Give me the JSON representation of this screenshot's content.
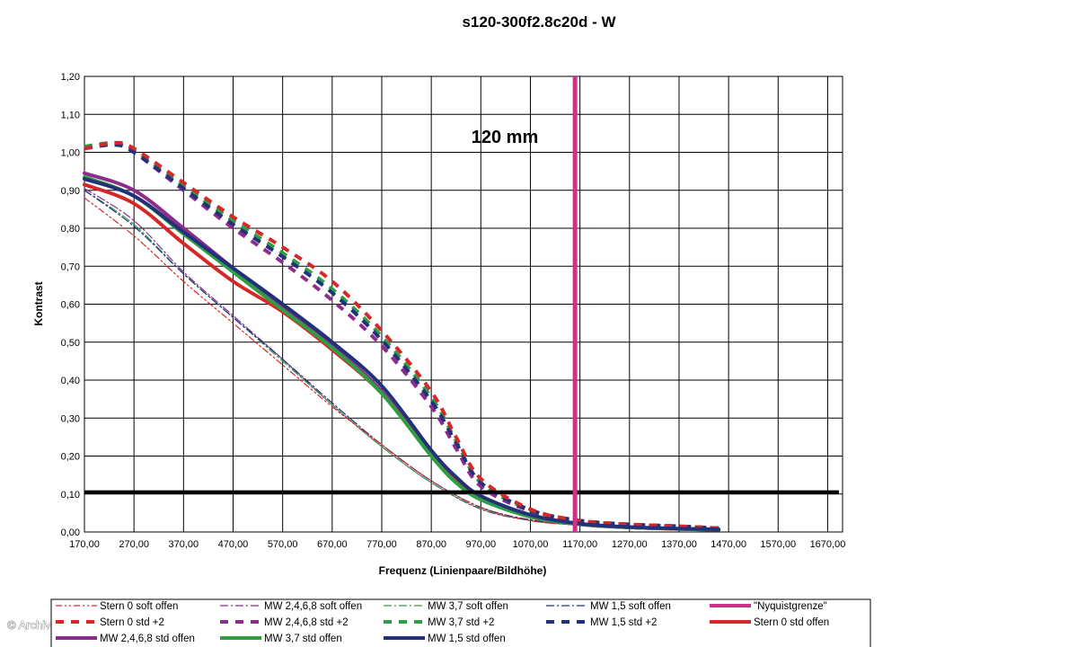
{
  "chart_data": {
    "type": "line",
    "title": "s120-300f2.8c20d - W",
    "annotation": "120 mm",
    "xlabel": "Frequenz (Linienpaare/Bildhöhe)",
    "ylabel": "Kontrast",
    "xlim": [
      170,
      1700
    ],
    "ylim": [
      0,
      1.2
    ],
    "x_ticks": [
      "170,00",
      "270,00",
      "370,00",
      "470,00",
      "570,00",
      "670,00",
      "770,00",
      "870,00",
      "970,00",
      "1070,00",
      "1170,00",
      "1270,00",
      "1370,00",
      "1470,00",
      "1570,00",
      "1670,00"
    ],
    "y_ticks": [
      "0,00",
      "0,10",
      "0,20",
      "0,30",
      "0,40",
      "0,50",
      "0,60",
      "0,70",
      "0,80",
      "0,90",
      "1,00",
      "1,10",
      "1,20"
    ],
    "grid": true,
    "legend_position": "bottom",
    "reference_lines": [
      {
        "orientation": "horizontal",
        "value": 0.105,
        "color": "#000000"
      },
      {
        "orientation": "vertical",
        "value": 1160,
        "color": "#d0308a",
        "name": "\"Nyquistgrenze\""
      }
    ],
    "series": [
      {
        "name": "Stern 0 soft offen",
        "color": "#d62828",
        "style": "dashdotdot",
        "width": 1.2,
        "x": [
          170,
          270,
          370,
          470,
          570,
          670,
          770,
          870,
          970,
          1070,
          1170,
          1270,
          1370,
          1450
        ],
        "y": [
          0.88,
          0.78,
          0.66,
          0.55,
          0.44,
          0.33,
          0.23,
          0.135,
          0.065,
          0.03,
          0.018,
          0.012,
          0.008,
          0.006
        ]
      },
      {
        "name": "MW 2,4,6,8 soft offen",
        "color": "#8e2c8e",
        "style": "dashdot",
        "width": 1.2,
        "x": [
          170,
          270,
          370,
          470,
          570,
          670,
          770,
          870,
          970,
          1070,
          1170,
          1270,
          1370,
          1450
        ],
        "y": [
          0.905,
          0.82,
          0.685,
          0.57,
          0.455,
          0.335,
          0.225,
          0.13,
          0.06,
          0.03,
          0.018,
          0.012,
          0.008,
          0.006
        ]
      },
      {
        "name": "MW 3,7 soft offen",
        "color": "#2e9e45",
        "style": "dashdot",
        "width": 1.2,
        "x": [
          170,
          270,
          370,
          470,
          570,
          670,
          770,
          870,
          970,
          1070,
          1170,
          1270,
          1370,
          1450
        ],
        "y": [
          0.9,
          0.81,
          0.68,
          0.565,
          0.45,
          0.335,
          0.225,
          0.13,
          0.062,
          0.03,
          0.018,
          0.012,
          0.008,
          0.006
        ]
      },
      {
        "name": "MW 1,5 soft offen",
        "color": "#23307a",
        "style": "dashdot",
        "width": 1.2,
        "x": [
          170,
          270,
          370,
          470,
          570,
          670,
          770,
          870,
          970,
          1070,
          1170,
          1270,
          1370,
          1450
        ],
        "y": [
          0.9,
          0.805,
          0.68,
          0.565,
          0.455,
          0.34,
          0.23,
          0.135,
          0.065,
          0.032,
          0.018,
          0.012,
          0.008,
          0.006
        ]
      },
      {
        "name": "\"Nyquistgrenze\"",
        "color": "#d0308a",
        "style": "solid",
        "width": 5,
        "x": [
          1160,
          1160
        ],
        "y": [
          0,
          1.2
        ]
      },
      {
        "name": "Stern 0 std +2",
        "color": "#d62828",
        "style": "dash",
        "width": 4,
        "x": [
          170,
          230,
          270,
          370,
          470,
          570,
          670,
          770,
          870,
          920,
          970,
          1070,
          1170,
          1270,
          1370,
          1450
        ],
        "y": [
          1.01,
          1.025,
          1.01,
          0.92,
          0.83,
          0.75,
          0.66,
          0.53,
          0.37,
          0.25,
          0.14,
          0.06,
          0.03,
          0.02,
          0.015,
          0.01
        ]
      },
      {
        "name": "MW 2,4,6,8 std +2",
        "color": "#8e2c8e",
        "style": "dash",
        "width": 4,
        "x": [
          170,
          230,
          270,
          370,
          470,
          570,
          670,
          770,
          870,
          920,
          970,
          1070,
          1170,
          1270,
          1370,
          1450
        ],
        "y": [
          1.01,
          1.02,
          1.0,
          0.9,
          0.8,
          0.71,
          0.61,
          0.49,
          0.33,
          0.22,
          0.12,
          0.055,
          0.03,
          0.02,
          0.015,
          0.01
        ]
      },
      {
        "name": "MW 3,7 std +2",
        "color": "#2e9e45",
        "style": "dash",
        "width": 4,
        "x": [
          170,
          230,
          270,
          370,
          470,
          570,
          670,
          770,
          870,
          920,
          970,
          1070,
          1170,
          1270,
          1370,
          1450
        ],
        "y": [
          1.015,
          1.025,
          1.005,
          0.91,
          0.82,
          0.735,
          0.64,
          0.515,
          0.355,
          0.24,
          0.13,
          0.058,
          0.03,
          0.02,
          0.015,
          0.01
        ]
      },
      {
        "name": "MW 1,5 std +2",
        "color": "#23307a",
        "style": "dash",
        "width": 4,
        "x": [
          170,
          230,
          270,
          370,
          470,
          570,
          670,
          770,
          870,
          920,
          970,
          1070,
          1170,
          1270,
          1370,
          1450
        ],
        "y": [
          1.01,
          1.02,
          1.0,
          0.905,
          0.81,
          0.725,
          0.63,
          0.505,
          0.345,
          0.235,
          0.13,
          0.058,
          0.03,
          0.02,
          0.015,
          0.01
        ]
      },
      {
        "name": "Stern 0 std offen",
        "color": "#d62828",
        "style": "solid",
        "width": 4,
        "x": [
          170,
          270,
          370,
          470,
          570,
          670,
          770,
          870,
          920,
          970,
          1070,
          1170,
          1270,
          1370,
          1450
        ],
        "y": [
          0.915,
          0.865,
          0.76,
          0.66,
          0.58,
          0.48,
          0.365,
          0.205,
          0.14,
          0.09,
          0.04,
          0.02,
          0.012,
          0.008,
          0.006
        ]
      },
      {
        "name": "MW 2,4,6,8 std offen",
        "color": "#8e2c8e",
        "style": "solid",
        "width": 4,
        "x": [
          170,
          270,
          370,
          470,
          570,
          670,
          770,
          870,
          920,
          970,
          1070,
          1170,
          1270,
          1370,
          1450
        ],
        "y": [
          0.945,
          0.9,
          0.8,
          0.695,
          0.59,
          0.49,
          0.37,
          0.2,
          0.135,
          0.09,
          0.04,
          0.02,
          0.012,
          0.008,
          0.006
        ]
      },
      {
        "name": "MW 3,7 std offen",
        "color": "#2e9e45",
        "style": "solid",
        "width": 4,
        "x": [
          170,
          270,
          370,
          470,
          570,
          670,
          770,
          870,
          920,
          970,
          1070,
          1170,
          1270,
          1370,
          1450
        ],
        "y": [
          0.935,
          0.885,
          0.785,
          0.685,
          0.585,
          0.485,
          0.365,
          0.2,
          0.13,
          0.085,
          0.04,
          0.02,
          0.012,
          0.008,
          0.006
        ]
      },
      {
        "name": "MW 1,5 std offen",
        "color": "#23307a",
        "style": "solid",
        "width": 4,
        "x": [
          170,
          270,
          370,
          470,
          570,
          670,
          770,
          870,
          920,
          970,
          1070,
          1170,
          1270,
          1370,
          1450
        ],
        "y": [
          0.93,
          0.885,
          0.79,
          0.695,
          0.6,
          0.5,
          0.385,
          0.215,
          0.145,
          0.095,
          0.045,
          0.022,
          0.013,
          0.009,
          0.007
        ]
      }
    ]
  },
  "watermark": "© Archiv"
}
